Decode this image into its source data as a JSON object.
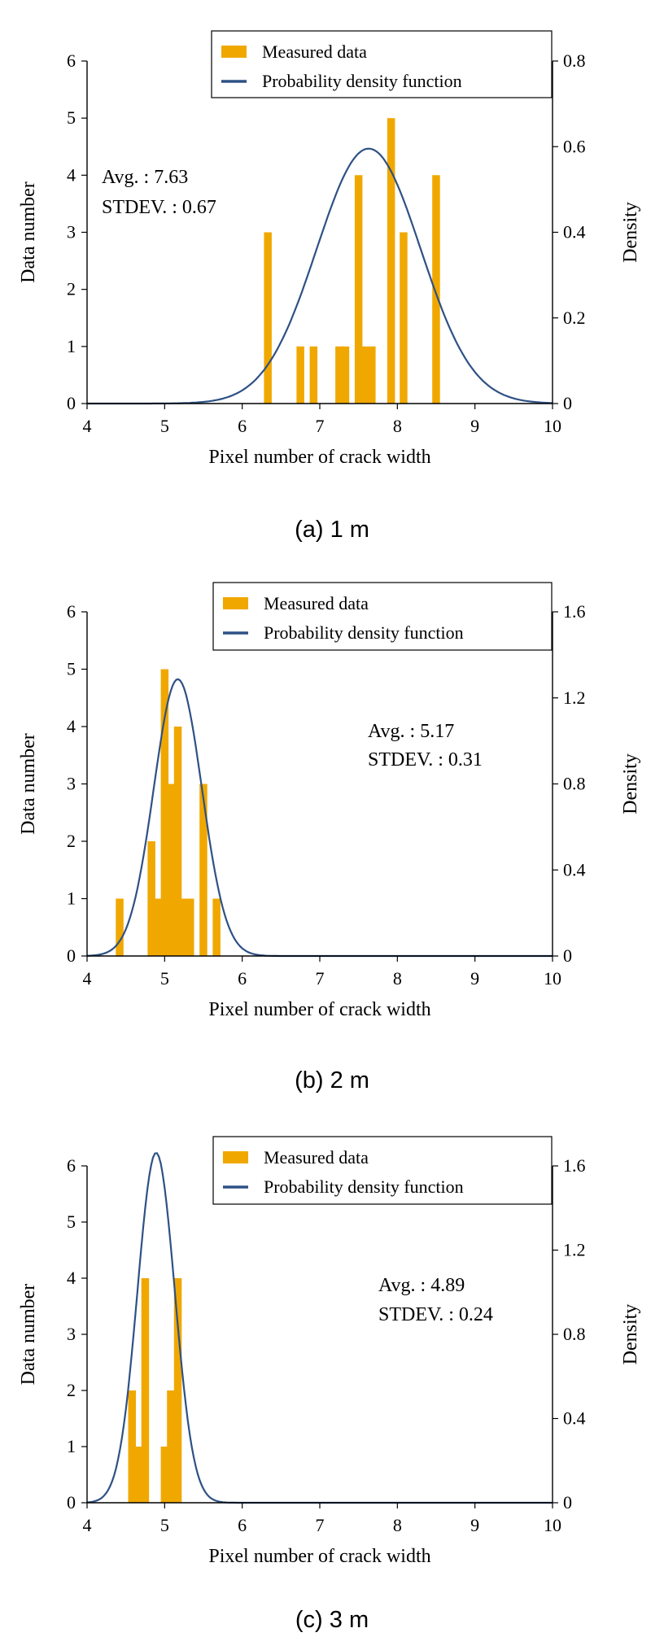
{
  "chart_data": [
    {
      "type": "bar",
      "caption": "(a) 1 m",
      "xlabel": "Pixel number of crack width",
      "ylabel": "Data number",
      "y2label": "Density",
      "xlim": [
        4,
        10
      ],
      "ylim": [
        0,
        6
      ],
      "y2lim": [
        0,
        0.8
      ],
      "xticks": [
        4,
        5,
        6,
        7,
        8,
        9,
        10
      ],
      "yticks": [
        0,
        1,
        2,
        3,
        4,
        5,
        6
      ],
      "y2ticks": [
        0,
        0.2,
        0.4,
        0.6,
        0.8
      ],
      "y2ticklabels": [
        "0",
        "0.2",
        "0.4",
        "0.6",
        "0.8"
      ],
      "legend": {
        "placement": "top-right",
        "bar_label": "Measured data",
        "line_label": "Probability density function"
      },
      "stats": {
        "avg": "Avg. : 7.63",
        "stdev": "STDEV. : 0.67"
      },
      "mean": 7.63,
      "sd": 0.67,
      "bar_width": 0.1,
      "series": [
        {
          "name": "Measured data",
          "x": [
            6.33,
            6.75,
            6.92,
            7.25,
            7.33,
            7.5,
            7.58,
            7.67,
            7.92,
            8.08,
            8.5
          ],
          "values": [
            3,
            1,
            1,
            1,
            1,
            4,
            1,
            1,
            5,
            3,
            4
          ]
        }
      ]
    },
    {
      "type": "bar",
      "caption": "(b) 2 m",
      "xlabel": "Pixel number of crack width",
      "ylabel": "Data number",
      "y2label": "Density",
      "xlim": [
        4,
        10
      ],
      "ylim": [
        0,
        6
      ],
      "y2lim": [
        0,
        1.6
      ],
      "xticks": [
        4,
        5,
        6,
        7,
        8,
        9,
        10
      ],
      "yticks": [
        0,
        1,
        2,
        3,
        4,
        5,
        6
      ],
      "y2ticks": [
        0,
        0.4,
        0.8,
        1.2,
        1.6
      ],
      "y2ticklabels": [
        "0",
        "0.4",
        "0.8",
        "1.2",
        "1.6"
      ],
      "legend": {
        "placement": "top-right",
        "bar_label": "Measured data",
        "line_label": "Probability density function"
      },
      "stats": {
        "avg": "Avg. : 5.17",
        "stdev": "STDEV. : 0.31"
      },
      "mean": 5.17,
      "sd": 0.31,
      "bar_width": 0.1,
      "series": [
        {
          "name": "Measured data",
          "x": [
            4.42,
            4.83,
            4.92,
            5.0,
            5.08,
            5.17,
            5.25,
            5.33,
            5.5,
            5.67
          ],
          "values": [
            1,
            2,
            1,
            5,
            3,
            4,
            1,
            1,
            3,
            1
          ]
        }
      ]
    },
    {
      "type": "bar",
      "caption": "(c) 3 m",
      "xlabel": "Pixel number of crack width",
      "ylabel": "Data number",
      "y2label": "Density",
      "xlim": [
        4,
        10
      ],
      "ylim": [
        0,
        6
      ],
      "y2lim": [
        0,
        1.6
      ],
      "xticks": [
        4,
        5,
        6,
        7,
        8,
        9,
        10
      ],
      "yticks": [
        0,
        1,
        2,
        3,
        4,
        5,
        6
      ],
      "y2ticks": [
        0,
        0.4,
        0.8,
        1.2,
        1.6
      ],
      "y2ticklabels": [
        "0",
        "0.4",
        "0.8",
        "1.2",
        "1.6"
      ],
      "legend": {
        "placement": "top-right",
        "bar_label": "Measured data",
        "line_label": "Probability density function"
      },
      "stats": {
        "avg": "Avg. : 4.89",
        "stdev": "STDEV. : 0.24"
      },
      "mean": 4.89,
      "sd": 0.24,
      "bar_width": 0.1,
      "series": [
        {
          "name": "Measured data",
          "x": [
            4.58,
            4.67,
            4.75,
            5.0,
            5.08,
            5.17
          ],
          "values": [
            2,
            1,
            4,
            1,
            2,
            4
          ]
        }
      ]
    }
  ],
  "colors": {
    "bars": "#F0A800",
    "curve": "#2E5185"
  }
}
